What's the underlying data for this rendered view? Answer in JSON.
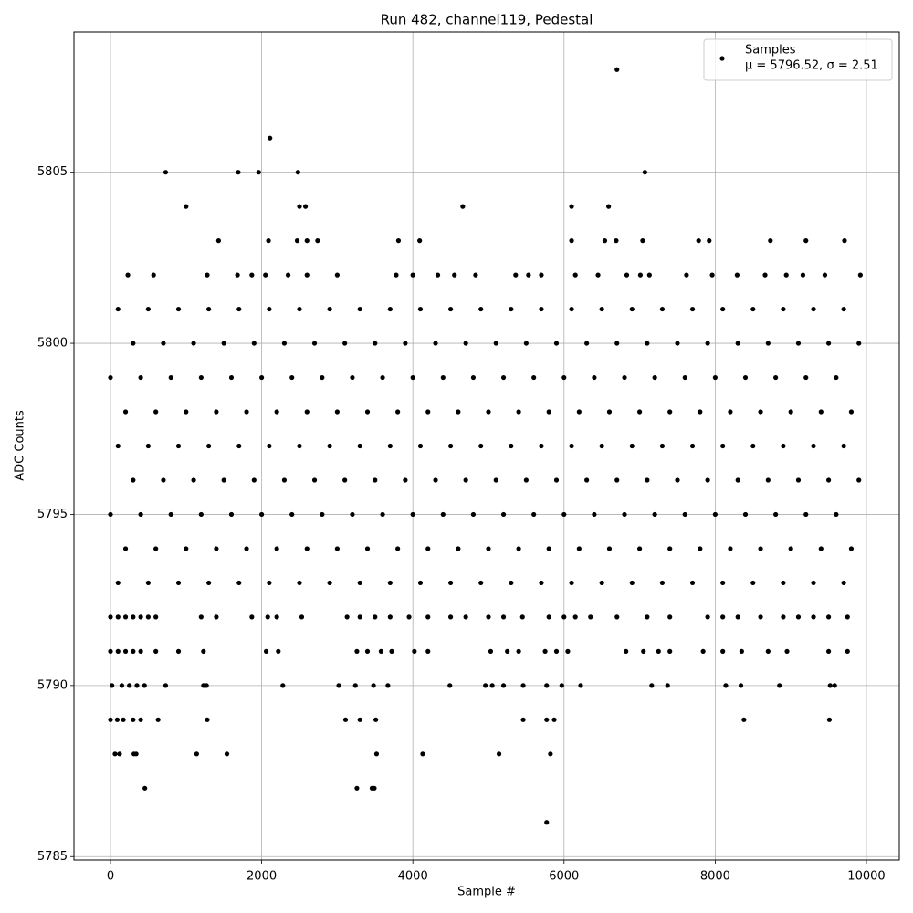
{
  "chart_data": {
    "type": "scatter",
    "title": "Run 482, channel119, Pedestal",
    "x_label": "Sample #",
    "y_label": "ADC Counts",
    "xlim": [
      -483,
      10435
    ],
    "ylim": [
      5784.9,
      5809.1
    ],
    "xticks": [
      0,
      2000,
      4000,
      6000,
      8000,
      10000
    ],
    "yticks": [
      5785,
      5790,
      5795,
      5800,
      5805
    ],
    "grid": true,
    "legend": "upper right",
    "series": [
      {
        "name": "Samples",
        "stats_label": "μ = 5796.52, σ = 2.51",
        "color": "#000000",
        "x": [
          6700,
          2110,
          730,
          1690,
          1960,
          2480,
          7070,
          1000,
          2500,
          2580,
          4660,
          6100,
          6590,
          1430,
          2090,
          2470,
          2600,
          2740,
          3810,
          4090,
          6100,
          6540,
          6690,
          7040,
          7780,
          7920,
          8730,
          9200,
          9710,
          230,
          570,
          1280,
          1680,
          1870,
          2050,
          2350,
          2600,
          3000,
          3780,
          4000,
          4330,
          4550,
          4830,
          5360,
          5530,
          5700,
          6150,
          6450,
          6830,
          7010,
          7130,
          7620,
          7960,
          8290,
          8660,
          8940,
          9160,
          9450,
          9920,
          100,
          500,
          900,
          1300,
          1700,
          2100,
          2500,
          2900,
          3300,
          3700,
          4100,
          4500,
          4900,
          5300,
          5700,
          6100,
          6500,
          6900,
          7300,
          7700,
          8100,
          8500,
          8900,
          9300,
          9700,
          300,
          700,
          1100,
          1500,
          1900,
          2300,
          2700,
          3100,
          3500,
          3900,
          4300,
          4700,
          5100,
          5500,
          5900,
          6300,
          6700,
          7100,
          7500,
          7900,
          8300,
          8700,
          9100,
          9500,
          9900,
          0,
          400,
          800,
          1200,
          1600,
          2000,
          2400,
          2800,
          3200,
          3600,
          4000,
          4400,
          4800,
          5200,
          5600,
          6000,
          6400,
          6800,
          7200,
          7600,
          8000,
          8400,
          8800,
          9200,
          9600,
          200,
          600,
          1000,
          1400,
          1800,
          2200,
          2600,
          3000,
          3400,
          3800,
          4200,
          4600,
          5000,
          5400,
          5800,
          6200,
          6600,
          7000,
          7400,
          7800,
          8200,
          8600,
          9000,
          9400,
          9800,
          100,
          500,
          900,
          1300,
          1700,
          2100,
          2500,
          2900,
          3300,
          3700,
          4100,
          4500,
          4900,
          5300,
          5700,
          6100,
          6500,
          6900,
          7300,
          7700,
          8100,
          8500,
          8900,
          9300,
          9700,
          300,
          700,
          1100,
          1500,
          1900,
          2300,
          2700,
          3100,
          3500,
          3900,
          4300,
          4700,
          5100,
          5500,
          5900,
          6300,
          6700,
          7100,
          7500,
          7900,
          8300,
          8700,
          9100,
          9500,
          9900,
          0,
          400,
          800,
          1200,
          1600,
          2000,
          2400,
          2800,
          3200,
          3600,
          4000,
          4400,
          4800,
          5200,
          5600,
          6000,
          6400,
          6800,
          7200,
          7600,
          8000,
          8400,
          8800,
          9200,
          9600,
          200,
          600,
          1000,
          1400,
          1800,
          2200,
          2600,
          3000,
          3400,
          3800,
          4200,
          4600,
          5000,
          5400,
          5800,
          6200,
          6600,
          7000,
          7400,
          7800,
          8200,
          8600,
          9000,
          9400,
          9800,
          100,
          500,
          900,
          1300,
          1700,
          2100,
          2500,
          2900,
          3300,
          3700,
          4100,
          4500,
          4900,
          5300,
          5700,
          6100,
          6500,
          6900,
          7300,
          7700,
          8100,
          8500,
          8900,
          9300,
          9700,
          0,
          100,
          200,
          300,
          400,
          500,
          600,
          1200,
          1400,
          1870,
          2080,
          2200,
          2530,
          3130,
          3300,
          3500,
          3700,
          3950,
          4200,
          4500,
          4700,
          5000,
          5200,
          5450,
          5800,
          6000,
          6150,
          6350,
          6700,
          7100,
          7400,
          7900,
          8100,
          8300,
          8600,
          8900,
          9100,
          9300,
          9500,
          9750,
          0,
          100,
          200,
          300,
          400,
          600,
          900,
          1230,
          2060,
          2220,
          3260,
          3400,
          3580,
          3720,
          4020,
          4200,
          5030,
          5250,
          5400,
          5750,
          5900,
          6050,
          6820,
          7050,
          7250,
          7400,
          7840,
          8100,
          8350,
          8700,
          8950,
          9500,
          9750,
          20,
          150,
          250,
          350,
          450,
          730,
          1230,
          1270,
          2280,
          3020,
          3240,
          3480,
          3670,
          4490,
          4960,
          5050,
          5200,
          5460,
          5770,
          5970,
          6220,
          7160,
          7370,
          8140,
          8340,
          8850,
          9520,
          9580,
          0,
          90,
          170,
          300,
          400,
          630,
          1280,
          3110,
          3300,
          3510,
          5460,
          5770,
          5870,
          8380,
          9510,
          60,
          120,
          310,
          340,
          1140,
          1540,
          3520,
          4130,
          5140,
          5820,
          455,
          3260,
          3460,
          3490,
          5770
        ],
        "values": [
          5808,
          5806,
          5805,
          5805,
          5805,
          5805,
          5805,
          5804,
          5804,
          5804,
          5804,
          5804,
          5804,
          5803,
          5803,
          5803,
          5803,
          5803,
          5803,
          5803,
          5803,
          5803,
          5803,
          5803,
          5803,
          5803,
          5803,
          5803,
          5803,
          5802,
          5802,
          5802,
          5802,
          5802,
          5802,
          5802,
          5802,
          5802,
          5802,
          5802,
          5802,
          5802,
          5802,
          5802,
          5802,
          5802,
          5802,
          5802,
          5802,
          5802,
          5802,
          5802,
          5802,
          5802,
          5802,
          5802,
          5802,
          5802,
          5802,
          5801,
          5801,
          5801,
          5801,
          5801,
          5801,
          5801,
          5801,
          5801,
          5801,
          5801,
          5801,
          5801,
          5801,
          5801,
          5801,
          5801,
          5801,
          5801,
          5801,
          5801,
          5801,
          5801,
          5801,
          5801,
          5800,
          5800,
          5800,
          5800,
          5800,
          5800,
          5800,
          5800,
          5800,
          5800,
          5800,
          5800,
          5800,
          5800,
          5800,
          5800,
          5800,
          5800,
          5800,
          5800,
          5800,
          5800,
          5800,
          5800,
          5800,
          5799,
          5799,
          5799,
          5799,
          5799,
          5799,
          5799,
          5799,
          5799,
          5799,
          5799,
          5799,
          5799,
          5799,
          5799,
          5799,
          5799,
          5799,
          5799,
          5799,
          5799,
          5799,
          5799,
          5799,
          5799,
          5798,
          5798,
          5798,
          5798,
          5798,
          5798,
          5798,
          5798,
          5798,
          5798,
          5798,
          5798,
          5798,
          5798,
          5798,
          5798,
          5798,
          5798,
          5798,
          5798,
          5798,
          5798,
          5798,
          5798,
          5798,
          5797,
          5797,
          5797,
          5797,
          5797,
          5797,
          5797,
          5797,
          5797,
          5797,
          5797,
          5797,
          5797,
          5797,
          5797,
          5797,
          5797,
          5797,
          5797,
          5797,
          5797,
          5797,
          5797,
          5797,
          5797,
          5796,
          5796,
          5796,
          5796,
          5796,
          5796,
          5796,
          5796,
          5796,
          5796,
          5796,
          5796,
          5796,
          5796,
          5796,
          5796,
          5796,
          5796,
          5796,
          5796,
          5796,
          5796,
          5796,
          5796,
          5796,
          5795,
          5795,
          5795,
          5795,
          5795,
          5795,
          5795,
          5795,
          5795,
          5795,
          5795,
          5795,
          5795,
          5795,
          5795,
          5795,
          5795,
          5795,
          5795,
          5795,
          5795,
          5795,
          5795,
          5795,
          5795,
          5794,
          5794,
          5794,
          5794,
          5794,
          5794,
          5794,
          5794,
          5794,
          5794,
          5794,
          5794,
          5794,
          5794,
          5794,
          5794,
          5794,
          5794,
          5794,
          5794,
          5794,
          5794,
          5794,
          5794,
          5794,
          5793,
          5793,
          5793,
          5793,
          5793,
          5793,
          5793,
          5793,
          5793,
          5793,
          5793,
          5793,
          5793,
          5793,
          5793,
          5793,
          5793,
          5793,
          5793,
          5793,
          5793,
          5793,
          5793,
          5793,
          5793,
          5792,
          5792,
          5792,
          5792,
          5792,
          5792,
          5792,
          5792,
          5792,
          5792,
          5792,
          5792,
          5792,
          5792,
          5792,
          5792,
          5792,
          5792,
          5792,
          5792,
          5792,
          5792,
          5792,
          5792,
          5792,
          5792,
          5792,
          5792,
          5792,
          5792,
          5792,
          5792,
          5792,
          5792,
          5792,
          5792,
          5792,
          5792,
          5792,
          5792,
          5791,
          5791,
          5791,
          5791,
          5791,
          5791,
          5791,
          5791,
          5791,
          5791,
          5791,
          5791,
          5791,
          5791,
          5791,
          5791,
          5791,
          5791,
          5791,
          5791,
          5791,
          5791,
          5791,
          5791,
          5791,
          5791,
          5791,
          5791,
          5791,
          5791,
          5791,
          5791,
          5791,
          5790,
          5790,
          5790,
          5790,
          5790,
          5790,
          5790,
          5790,
          5790,
          5790,
          5790,
          5790,
          5790,
          5790,
          5790,
          5790,
          5790,
          5790,
          5790,
          5790,
          5790,
          5790,
          5790,
          5790,
          5790,
          5790,
          5790,
          5790,
          5789,
          5789,
          5789,
          5789,
          5789,
          5789,
          5789,
          5789,
          5789,
          5789,
          5789,
          5789,
          5789,
          5789,
          5789,
          5788,
          5788,
          5788,
          5788,
          5788,
          5788,
          5788,
          5788,
          5788,
          5788,
          5787,
          5787,
          5787,
          5787,
          5786
        ]
      }
    ]
  }
}
